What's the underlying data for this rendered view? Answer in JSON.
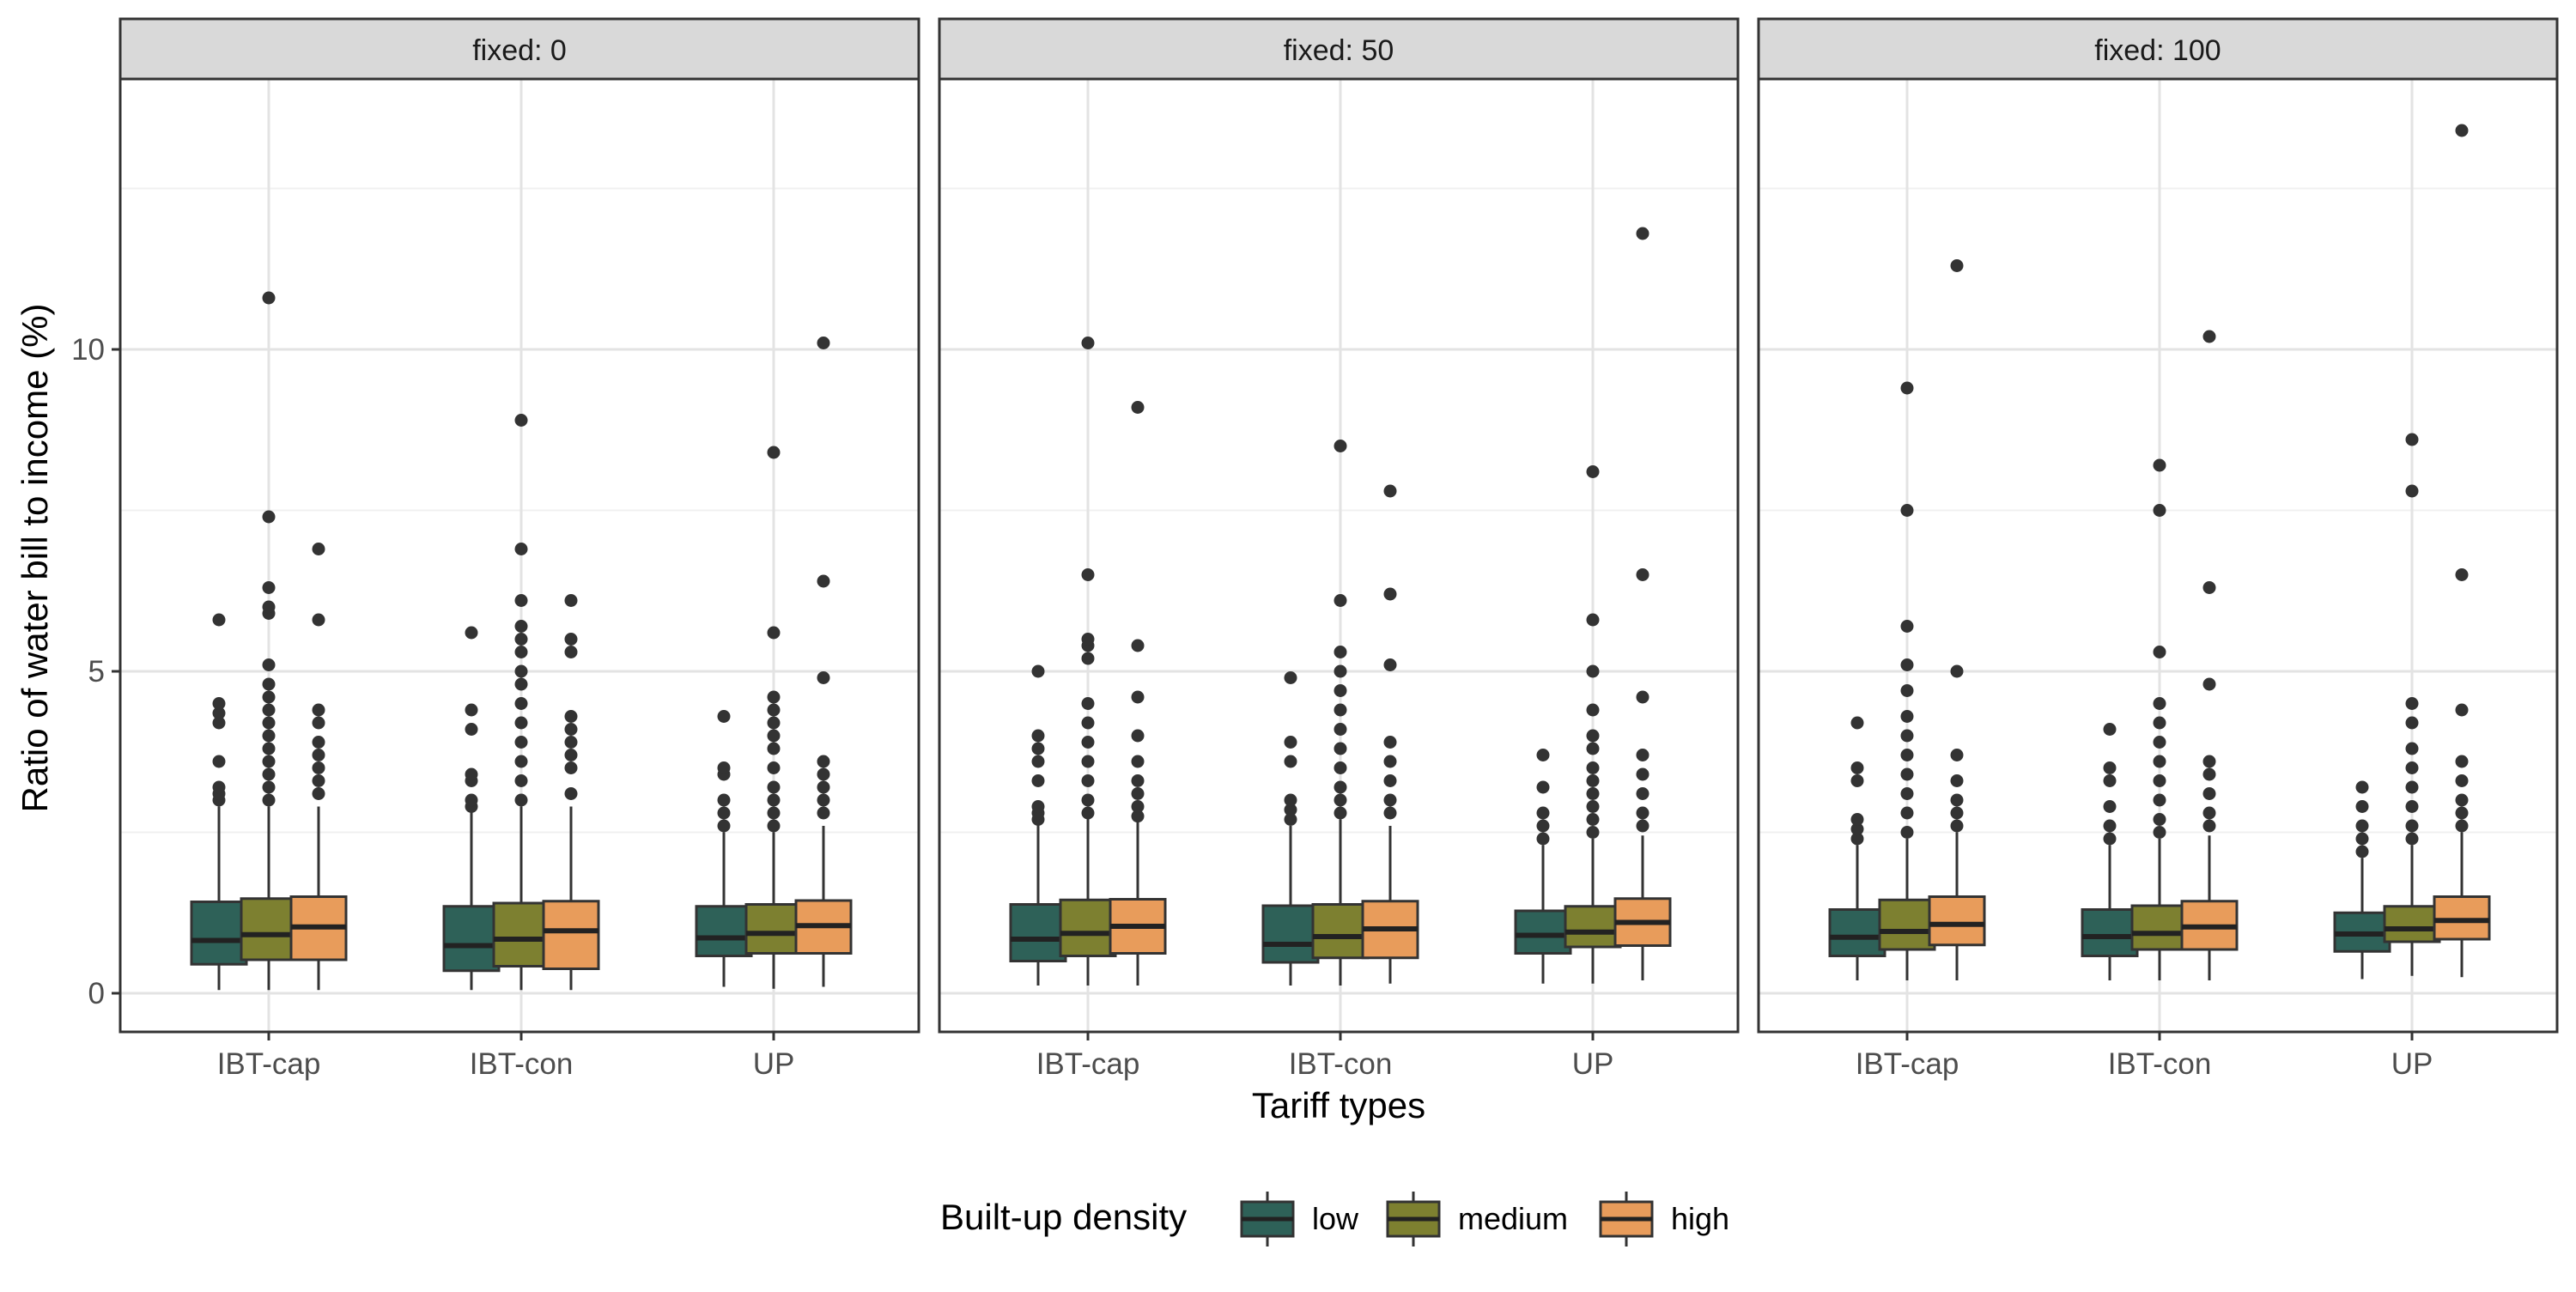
{
  "chart_data": {
    "type": "boxplot",
    "facet_label_prefix": "fixed",
    "facets": [
      "fixed: 0",
      "fixed: 50",
      "fixed: 100"
    ],
    "categories": [
      "IBT-cap",
      "IBT-con",
      "UP"
    ],
    "xlabel": "Tariff types",
    "ylabel": "Ratio of water bill to income (%)",
    "ylim": [
      -0.6,
      14.2
    ],
    "yticks": [
      0,
      5,
      10
    ],
    "grid": true,
    "legend": {
      "title": "Built-up density",
      "position": "bottom",
      "entries": [
        "low",
        "medium",
        "high"
      ]
    },
    "colors": {
      "low": "#2e6158",
      "medium": "#7d8030",
      "high": "#e89c5b",
      "outlier": "#333333"
    },
    "panels": [
      {
        "facet": "fixed: 0",
        "groups": [
          {
            "category": "IBT-cap",
            "series": "low",
            "min": 0.05,
            "q1": 0.45,
            "median": 0.82,
            "q3": 1.42,
            "max": 2.9,
            "outliers": [
              3.0,
              3.1,
              3.2,
              3.6,
              4.2,
              4.35,
              4.5,
              5.8
            ]
          },
          {
            "category": "IBT-cap",
            "series": "medium",
            "min": 0.05,
            "q1": 0.52,
            "median": 0.91,
            "q3": 1.47,
            "max": 2.9,
            "outliers": [
              3.0,
              3.2,
              3.4,
              3.6,
              3.8,
              4.0,
              4.2,
              4.4,
              4.6,
              4.8,
              5.1,
              5.9,
              6.0,
              6.3,
              7.4,
              10.8
            ]
          },
          {
            "category": "IBT-cap",
            "series": "high",
            "min": 0.05,
            "q1": 0.52,
            "median": 1.03,
            "q3": 1.5,
            "max": 2.9,
            "outliers": [
              3.1,
              3.3,
              3.5,
              3.7,
              3.9,
              4.2,
              4.4,
              5.8,
              6.9
            ]
          },
          {
            "category": "IBT-con",
            "series": "low",
            "min": 0.05,
            "q1": 0.35,
            "median": 0.74,
            "q3": 1.35,
            "max": 2.85,
            "outliers": [
              2.9,
              3.0,
              3.3,
              3.4,
              4.1,
              4.4,
              5.6
            ]
          },
          {
            "category": "IBT-con",
            "series": "medium",
            "min": 0.05,
            "q1": 0.42,
            "median": 0.84,
            "q3": 1.4,
            "max": 2.9,
            "outliers": [
              3.0,
              3.3,
              3.6,
              3.9,
              4.2,
              4.5,
              4.8,
              5.0,
              5.3,
              5.5,
              5.7,
              6.1,
              6.9,
              8.9
            ]
          },
          {
            "category": "IBT-con",
            "series": "high",
            "min": 0.05,
            "q1": 0.38,
            "median": 0.97,
            "q3": 1.43,
            "max": 2.9,
            "outliers": [
              3.1,
              3.5,
              3.7,
              3.9,
              4.1,
              4.3,
              5.3,
              5.5,
              6.1
            ]
          },
          {
            "category": "UP",
            "series": "low",
            "min": 0.1,
            "q1": 0.58,
            "median": 0.86,
            "q3": 1.35,
            "max": 2.5,
            "outliers": [
              2.6,
              2.8,
              3.0,
              3.4,
              3.5,
              4.3
            ]
          },
          {
            "category": "UP",
            "series": "medium",
            "min": 0.07,
            "q1": 0.62,
            "median": 0.93,
            "q3": 1.38,
            "max": 2.5,
            "outliers": [
              2.6,
              2.8,
              3.0,
              3.2,
              3.5,
              3.8,
              4.0,
              4.2,
              4.4,
              4.6,
              5.6,
              8.4
            ]
          },
          {
            "category": "UP",
            "series": "high",
            "min": 0.1,
            "q1": 0.62,
            "median": 1.05,
            "q3": 1.44,
            "max": 2.6,
            "outliers": [
              2.8,
              3.0,
              3.2,
              3.4,
              3.6,
              4.9,
              6.4,
              10.1
            ]
          }
        ]
      },
      {
        "facet": "fixed: 50",
        "groups": [
          {
            "category": "IBT-cap",
            "series": "low",
            "min": 0.12,
            "q1": 0.5,
            "median": 0.84,
            "q3": 1.38,
            "max": 2.65,
            "outliers": [
              2.7,
              2.8,
              2.9,
              3.3,
              3.6,
              3.8,
              4.0,
              5.0
            ]
          },
          {
            "category": "IBT-cap",
            "series": "medium",
            "min": 0.12,
            "q1": 0.58,
            "median": 0.93,
            "q3": 1.45,
            "max": 2.75,
            "outliers": [
              2.8,
              3.0,
              3.3,
              3.6,
              3.9,
              4.2,
              4.5,
              5.2,
              5.4,
              5.5,
              6.5,
              10.1
            ]
          },
          {
            "category": "IBT-cap",
            "series": "high",
            "min": 0.12,
            "q1": 0.62,
            "median": 1.04,
            "q3": 1.46,
            "max": 2.7,
            "outliers": [
              2.75,
              2.9,
              3.1,
              3.3,
              3.6,
              4.0,
              4.6,
              5.4,
              9.1
            ]
          },
          {
            "category": "IBT-con",
            "series": "low",
            "min": 0.12,
            "q1": 0.48,
            "median": 0.76,
            "q3": 1.36,
            "max": 2.6,
            "outliers": [
              2.7,
              2.85,
              3.0,
              3.6,
              3.9,
              4.9
            ]
          },
          {
            "category": "IBT-con",
            "series": "medium",
            "min": 0.12,
            "q1": 0.55,
            "median": 0.88,
            "q3": 1.38,
            "max": 2.7,
            "outliers": [
              2.8,
              3.0,
              3.2,
              3.5,
              3.8,
              4.1,
              4.4,
              4.7,
              5.0,
              5.3,
              6.1,
              8.5
            ]
          },
          {
            "category": "IBT-con",
            "series": "high",
            "min": 0.15,
            "q1": 0.55,
            "median": 1.0,
            "q3": 1.43,
            "max": 2.6,
            "outliers": [
              2.8,
              3.0,
              3.3,
              3.6,
              3.9,
              5.1,
              6.2,
              7.8
            ]
          },
          {
            "category": "UP",
            "series": "low",
            "min": 0.15,
            "q1": 0.62,
            "median": 0.9,
            "q3": 1.28,
            "max": 2.3,
            "outliers": [
              2.4,
              2.6,
              2.8,
              3.2,
              3.7
            ]
          },
          {
            "category": "UP",
            "series": "medium",
            "min": 0.15,
            "q1": 0.72,
            "median": 0.95,
            "q3": 1.35,
            "max": 2.4,
            "outliers": [
              2.5,
              2.7,
              2.9,
              3.1,
              3.3,
              3.5,
              3.8,
              4.0,
              4.4,
              5.0,
              5.8,
              8.1
            ]
          },
          {
            "category": "UP",
            "series": "high",
            "min": 0.2,
            "q1": 0.74,
            "median": 1.1,
            "q3": 1.47,
            "max": 2.45,
            "outliers": [
              2.6,
              2.8,
              3.1,
              3.4,
              3.7,
              4.6,
              6.5,
              11.8
            ]
          }
        ]
      },
      {
        "facet": "fixed: 100",
        "groups": [
          {
            "category": "IBT-cap",
            "series": "low",
            "min": 0.2,
            "q1": 0.58,
            "median": 0.87,
            "q3": 1.3,
            "max": 2.3,
            "outliers": [
              2.4,
              2.55,
              2.7,
              3.3,
              3.5,
              4.2
            ]
          },
          {
            "category": "IBT-cap",
            "series": "medium",
            "min": 0.2,
            "q1": 0.68,
            "median": 0.96,
            "q3": 1.45,
            "max": 2.4,
            "outliers": [
              2.5,
              2.8,
              3.1,
              3.4,
              3.7,
              4.0,
              4.3,
              4.7,
              5.1,
              5.7,
              7.5,
              9.4
            ]
          },
          {
            "category": "IBT-cap",
            "series": "high",
            "min": 0.2,
            "q1": 0.75,
            "median": 1.07,
            "q3": 1.5,
            "max": 2.5,
            "outliers": [
              2.6,
              2.8,
              3.0,
              3.3,
              3.7,
              5.0,
              11.3
            ]
          },
          {
            "category": "IBT-con",
            "series": "low",
            "min": 0.2,
            "q1": 0.58,
            "median": 0.88,
            "q3": 1.3,
            "max": 2.3,
            "outliers": [
              2.4,
              2.6,
              2.9,
              3.3,
              3.5,
              4.1
            ]
          },
          {
            "category": "IBT-con",
            "series": "medium",
            "min": 0.2,
            "q1": 0.68,
            "median": 0.93,
            "q3": 1.36,
            "max": 2.4,
            "outliers": [
              2.5,
              2.7,
              3.0,
              3.3,
              3.6,
              3.9,
              4.2,
              4.5,
              5.3,
              7.5,
              8.2
            ]
          },
          {
            "category": "IBT-con",
            "series": "high",
            "min": 0.2,
            "q1": 0.68,
            "median": 1.03,
            "q3": 1.43,
            "max": 2.45,
            "outliers": [
              2.6,
              2.8,
              3.1,
              3.4,
              3.6,
              4.8,
              6.3,
              10.2
            ]
          },
          {
            "category": "UP",
            "series": "low",
            "min": 0.22,
            "q1": 0.65,
            "median": 0.92,
            "q3": 1.25,
            "max": 2.1,
            "outliers": [
              2.2,
              2.4,
              2.6,
              2.9,
              3.2
            ]
          },
          {
            "category": "UP",
            "series": "medium",
            "min": 0.27,
            "q1": 0.8,
            "median": 1.0,
            "q3": 1.35,
            "max": 2.3,
            "outliers": [
              2.4,
              2.6,
              2.9,
              3.2,
              3.5,
              3.8,
              4.2,
              4.5,
              7.8,
              8.6
            ]
          },
          {
            "category": "UP",
            "series": "high",
            "min": 0.25,
            "q1": 0.84,
            "median": 1.13,
            "q3": 1.5,
            "max": 2.5,
            "outliers": [
              2.6,
              2.8,
              3.0,
              3.3,
              3.6,
              4.4,
              6.5,
              13.4
            ]
          }
        ]
      }
    ]
  }
}
